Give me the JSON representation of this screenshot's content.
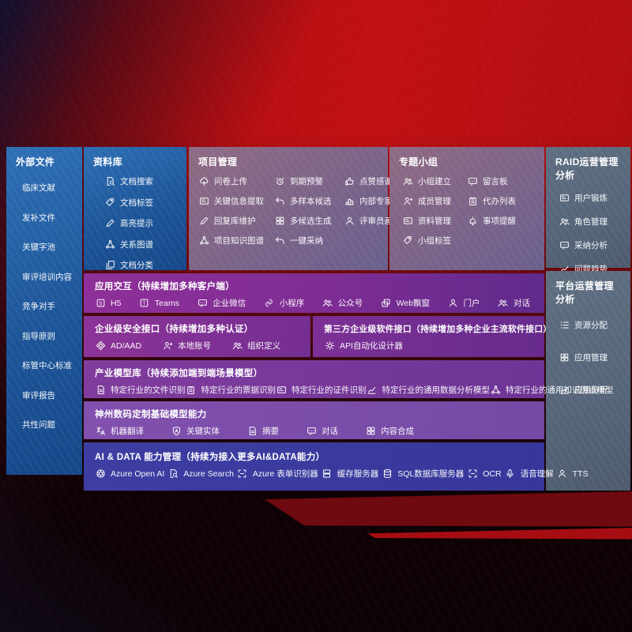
{
  "colors": {
    "bg_red": "#c01013",
    "bg_dark": "#0c0104",
    "panel_blue": "#1d5598",
    "panel_mauve": "#7b6489",
    "panel_slate": "#56657a",
    "row_purple": "#7d2d94",
    "row_violet": "#8250ae",
    "row_indigo": "#3e3ea2"
  },
  "panels": {
    "external": {
      "title": "外部文件",
      "items": [
        "临床文献",
        "发补文件",
        "关键字池",
        "审评培训内容",
        "竞争对手",
        "指导原则",
        "标管中心标准",
        "审评报告",
        "共性问题"
      ]
    },
    "repo": {
      "title": "资料库",
      "items": [
        {
          "label": "文档搜索",
          "icon": "doc-search-icon",
          "shape": "searchDoc"
        },
        {
          "label": "文档标签",
          "icon": "doc-tag-icon",
          "shape": "tag"
        },
        {
          "label": "高亮提示",
          "icon": "highlighter-icon",
          "shape": "pen"
        },
        {
          "label": "关系图谱",
          "icon": "relation-graph-icon",
          "shape": "net"
        },
        {
          "label": "文档分类",
          "icon": "doc-classify-icon",
          "shape": "copy"
        }
      ]
    },
    "project": {
      "title": "项目管理",
      "items": [
        {
          "label": "问卷上传",
          "icon": "cloud-upload-icon",
          "shape": "cloudUp"
        },
        {
          "label": "到期预警",
          "icon": "due-alarm-icon",
          "shape": "alarm"
        },
        {
          "label": "点赞感谢",
          "icon": "thumbs-up-icon",
          "shape": "thumb"
        },
        {
          "label": "关键信息提取",
          "icon": "key-info-extract-icon",
          "shape": "card"
        },
        {
          "label": "多样本候选",
          "icon": "multi-sample-icon",
          "shape": "undo"
        },
        {
          "label": "内部专家排名",
          "icon": "expert-ranking-icon",
          "shape": "podium"
        },
        {
          "label": "回复库维护",
          "icon": "reply-maintain-icon",
          "shape": "pen"
        },
        {
          "label": "多候选生成",
          "icon": "multi-candidate-icon",
          "shape": "grid"
        },
        {
          "label": "评审员画像",
          "icon": "reviewer-profile-icon",
          "shape": "person"
        },
        {
          "label": "项目知识图谱",
          "icon": "project-knowledge-graph-icon",
          "shape": "net"
        },
        {
          "label": "一键采纳",
          "icon": "one-click-adopt-icon",
          "shape": "undo"
        }
      ]
    },
    "group": {
      "title": "专题小组",
      "items": [
        {
          "label": "小组建立",
          "icon": "group-create-icon",
          "shape": "persons"
        },
        {
          "label": "留言板",
          "icon": "bbs-board-icon",
          "shape": "bbs"
        },
        {
          "label": "成员管理",
          "icon": "member-manage-icon",
          "shape": "personPlus"
        },
        {
          "label": "代办列表",
          "icon": "todo-list-icon",
          "shape": "clipboard"
        },
        {
          "label": "资料管理",
          "icon": "material-manage-icon",
          "shape": "card"
        },
        {
          "label": "事项提醒",
          "icon": "reminder-bell-icon",
          "shape": "bell"
        },
        {
          "label": "小组标签",
          "icon": "group-tag-icon",
          "shape": "tag"
        }
      ]
    },
    "raid": {
      "title": "RAID运营管理分析",
      "items": [
        {
          "label": "用户锻炼",
          "icon": "user-card-icon",
          "shape": "card"
        },
        {
          "label": "角色管理",
          "icon": "role-manage-icon",
          "shape": "persons"
        },
        {
          "label": "采纳分析",
          "icon": "adoption-analysis-icon",
          "shape": "bbs"
        },
        {
          "label": "问题趋势",
          "icon": "issue-trend-icon",
          "shape": "chart"
        }
      ]
    },
    "platform": {
      "title": "平台运营管理分析",
      "items": [
        {
          "label": "资源分配",
          "icon": "resource-alloc-icon",
          "shape": "list"
        },
        {
          "label": "应用管理",
          "icon": "app-manage-icon",
          "shape": "grid"
        },
        {
          "label": "应用分析",
          "icon": "app-analysis-icon",
          "shape": "chart"
        }
      ]
    },
    "app_interact": {
      "title": "应用交互（持续增加多种客户端）",
      "items": [
        {
          "label": "H5",
          "icon": "h5-icon",
          "shape": "sq5"
        },
        {
          "label": "Teams",
          "icon": "teams-icon",
          "shape": "sqT"
        },
        {
          "label": "企业微信",
          "icon": "wechat-work-icon",
          "shape": "bbs"
        },
        {
          "label": "小程序",
          "icon": "miniprogram-icon",
          "shape": "mini"
        },
        {
          "label": "公众号",
          "icon": "official-account-icon",
          "shape": "persons"
        },
        {
          "label": "Web飘窗",
          "icon": "web-popup-icon",
          "shape": "webwin"
        },
        {
          "label": "门户",
          "icon": "portal-icon",
          "shape": "person"
        },
        {
          "label": "对话",
          "icon": "dialog-icon",
          "shape": "persons"
        }
      ]
    },
    "security": {
      "title": "企业级安全接口（持续增加多种认证）",
      "items": [
        {
          "label": "AD/AAD",
          "icon": "ad-aad-icon",
          "shape": "diamond"
        },
        {
          "label": "本地账号",
          "icon": "local-account-icon",
          "shape": "personPlus"
        },
        {
          "label": "组织定义",
          "icon": "org-define-icon",
          "shape": "persons"
        }
      ]
    },
    "third_party": {
      "title": "第三方企业级软件接口（持续增加多种企业主流软件接口）",
      "items": [
        {
          "label": "API自动化设计器",
          "icon": "api-designer-icon",
          "shape": "gear"
        }
      ]
    },
    "industry_models": {
      "title": "产业模型库（持续添加端到端场景模型）",
      "items": [
        {
          "label": "特定行业的文件识别",
          "icon": "industry-file-recognition-icon",
          "shape": "doc"
        },
        {
          "label": "特定行业的票据识别",
          "icon": "industry-receipt-recognition-icon",
          "shape": "clipboard"
        },
        {
          "label": "特定行业的证件识别",
          "icon": "industry-certificate-recognition-icon",
          "shape": "card"
        },
        {
          "label": "特定行业的通用数据分析模型",
          "icon": "industry-data-analysis-model-icon",
          "shape": "chart"
        },
        {
          "label": "特定行业的通用知识图谱模型",
          "icon": "industry-knowledge-graph-model-icon",
          "shape": "net"
        }
      ]
    },
    "custom_models": {
      "title": "神州数码定制基础模型能力",
      "items": [
        {
          "label": "机器翻译",
          "icon": "machine-translate-icon",
          "shape": "translate"
        },
        {
          "label": "关键实体",
          "icon": "key-entity-icon",
          "shape": "shield"
        },
        {
          "label": "摘要",
          "icon": "summary-icon",
          "shape": "doc"
        },
        {
          "label": "对话",
          "icon": "chat-icon",
          "shape": "bbs"
        },
        {
          "label": "内容合成",
          "icon": "content-compose-icon",
          "shape": "grid"
        }
      ]
    },
    "ai_data": {
      "title": "AI & DATA 能力管理（持续为接入更多AI&DATA能力）",
      "items": [
        {
          "label": "Azure Open AI",
          "icon": "azure-openai-icon",
          "shape": "openai"
        },
        {
          "label": "Azure Search",
          "icon": "azure-search-icon",
          "shape": "searchDoc"
        },
        {
          "label": "Azure 表单识别器",
          "icon": "form-recognizer-icon",
          "shape": "brackets"
        },
        {
          "label": "缓存服务器",
          "icon": "cache-server-icon",
          "shape": "server"
        },
        {
          "label": "SQL数据库服务器",
          "icon": "sql-database-icon",
          "shape": "db"
        },
        {
          "label": "OCR",
          "icon": "ocr-icon",
          "shape": "brackets"
        },
        {
          "label": "语音理解",
          "icon": "speech-understanding-icon",
          "shape": "mic"
        },
        {
          "label": "TTS",
          "icon": "tts-icon",
          "shape": "person"
        }
      ]
    }
  }
}
